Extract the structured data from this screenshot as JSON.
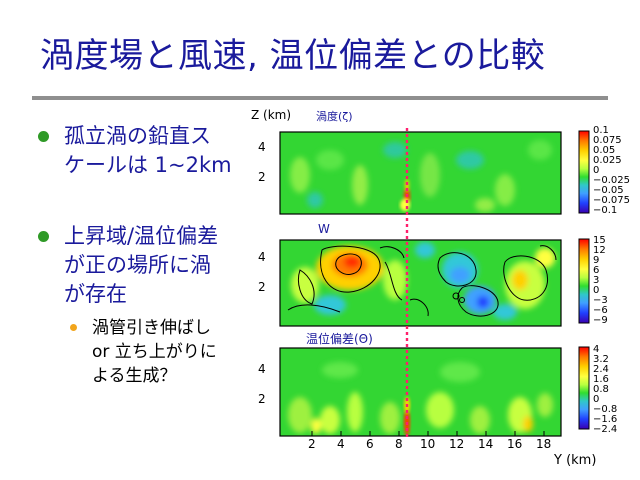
{
  "slide": {
    "title": "渦度場と風速, 温位偏差との比較",
    "bullets": [
      {
        "lines": [
          "孤立渦の鉛直ス",
          "ケールは 1~2km"
        ]
      },
      {
        "lines": [
          "上昇域/温位偏差",
          "が正の場所に渦",
          "が存在"
        ]
      }
    ],
    "sub_bullet": {
      "lines": [
        "渦管引き伸ばし",
        "or 立ち上がりに",
        "よる生成？"
      ]
    }
  },
  "figure": {
    "z_axis_label": "Z (km)",
    "x_axis_label": "Y (km)",
    "panels": [
      {
        "label": "渦度(ζ)",
        "z_ticks": [
          "4",
          "2"
        ],
        "colorbar_ticks": [
          "0.1",
          "0.075",
          "0.05",
          "0.025",
          "0",
          "−0.025",
          "−0.05",
          "−0.075",
          "−0.1"
        ]
      },
      {
        "label": "W",
        "z_ticks": [
          "4",
          "2"
        ],
        "colorbar_ticks": [
          "15",
          "12",
          "9",
          "6",
          "3",
          "0",
          "−3",
          "−6",
          "−9"
        ]
      },
      {
        "label": "温位偏差(Θ)",
        "z_ticks": [
          "4",
          "2"
        ],
        "colorbar_ticks": [
          "4",
          "3.2",
          "2.4",
          "1.6",
          "0.8",
          "0",
          "−0.8",
          "−1.6",
          "−2.4"
        ]
      }
    ],
    "y_ticks": [
      "2",
      "4",
      "6",
      "8",
      "10",
      "12",
      "14",
      "16",
      "18"
    ],
    "colors": {
      "field_green": "#33d633",
      "colorbar": [
        "#ff0000",
        "#ff7a00",
        "#ffd000",
        "#ffff40",
        "#b8ff40",
        "#30dd30",
        "#30c8c8",
        "#40a0ff",
        "#2040ff",
        "#3a00b0"
      ],
      "cross_section_marker": "#ff1e6e",
      "title": "#1a1a9c"
    }
  }
}
